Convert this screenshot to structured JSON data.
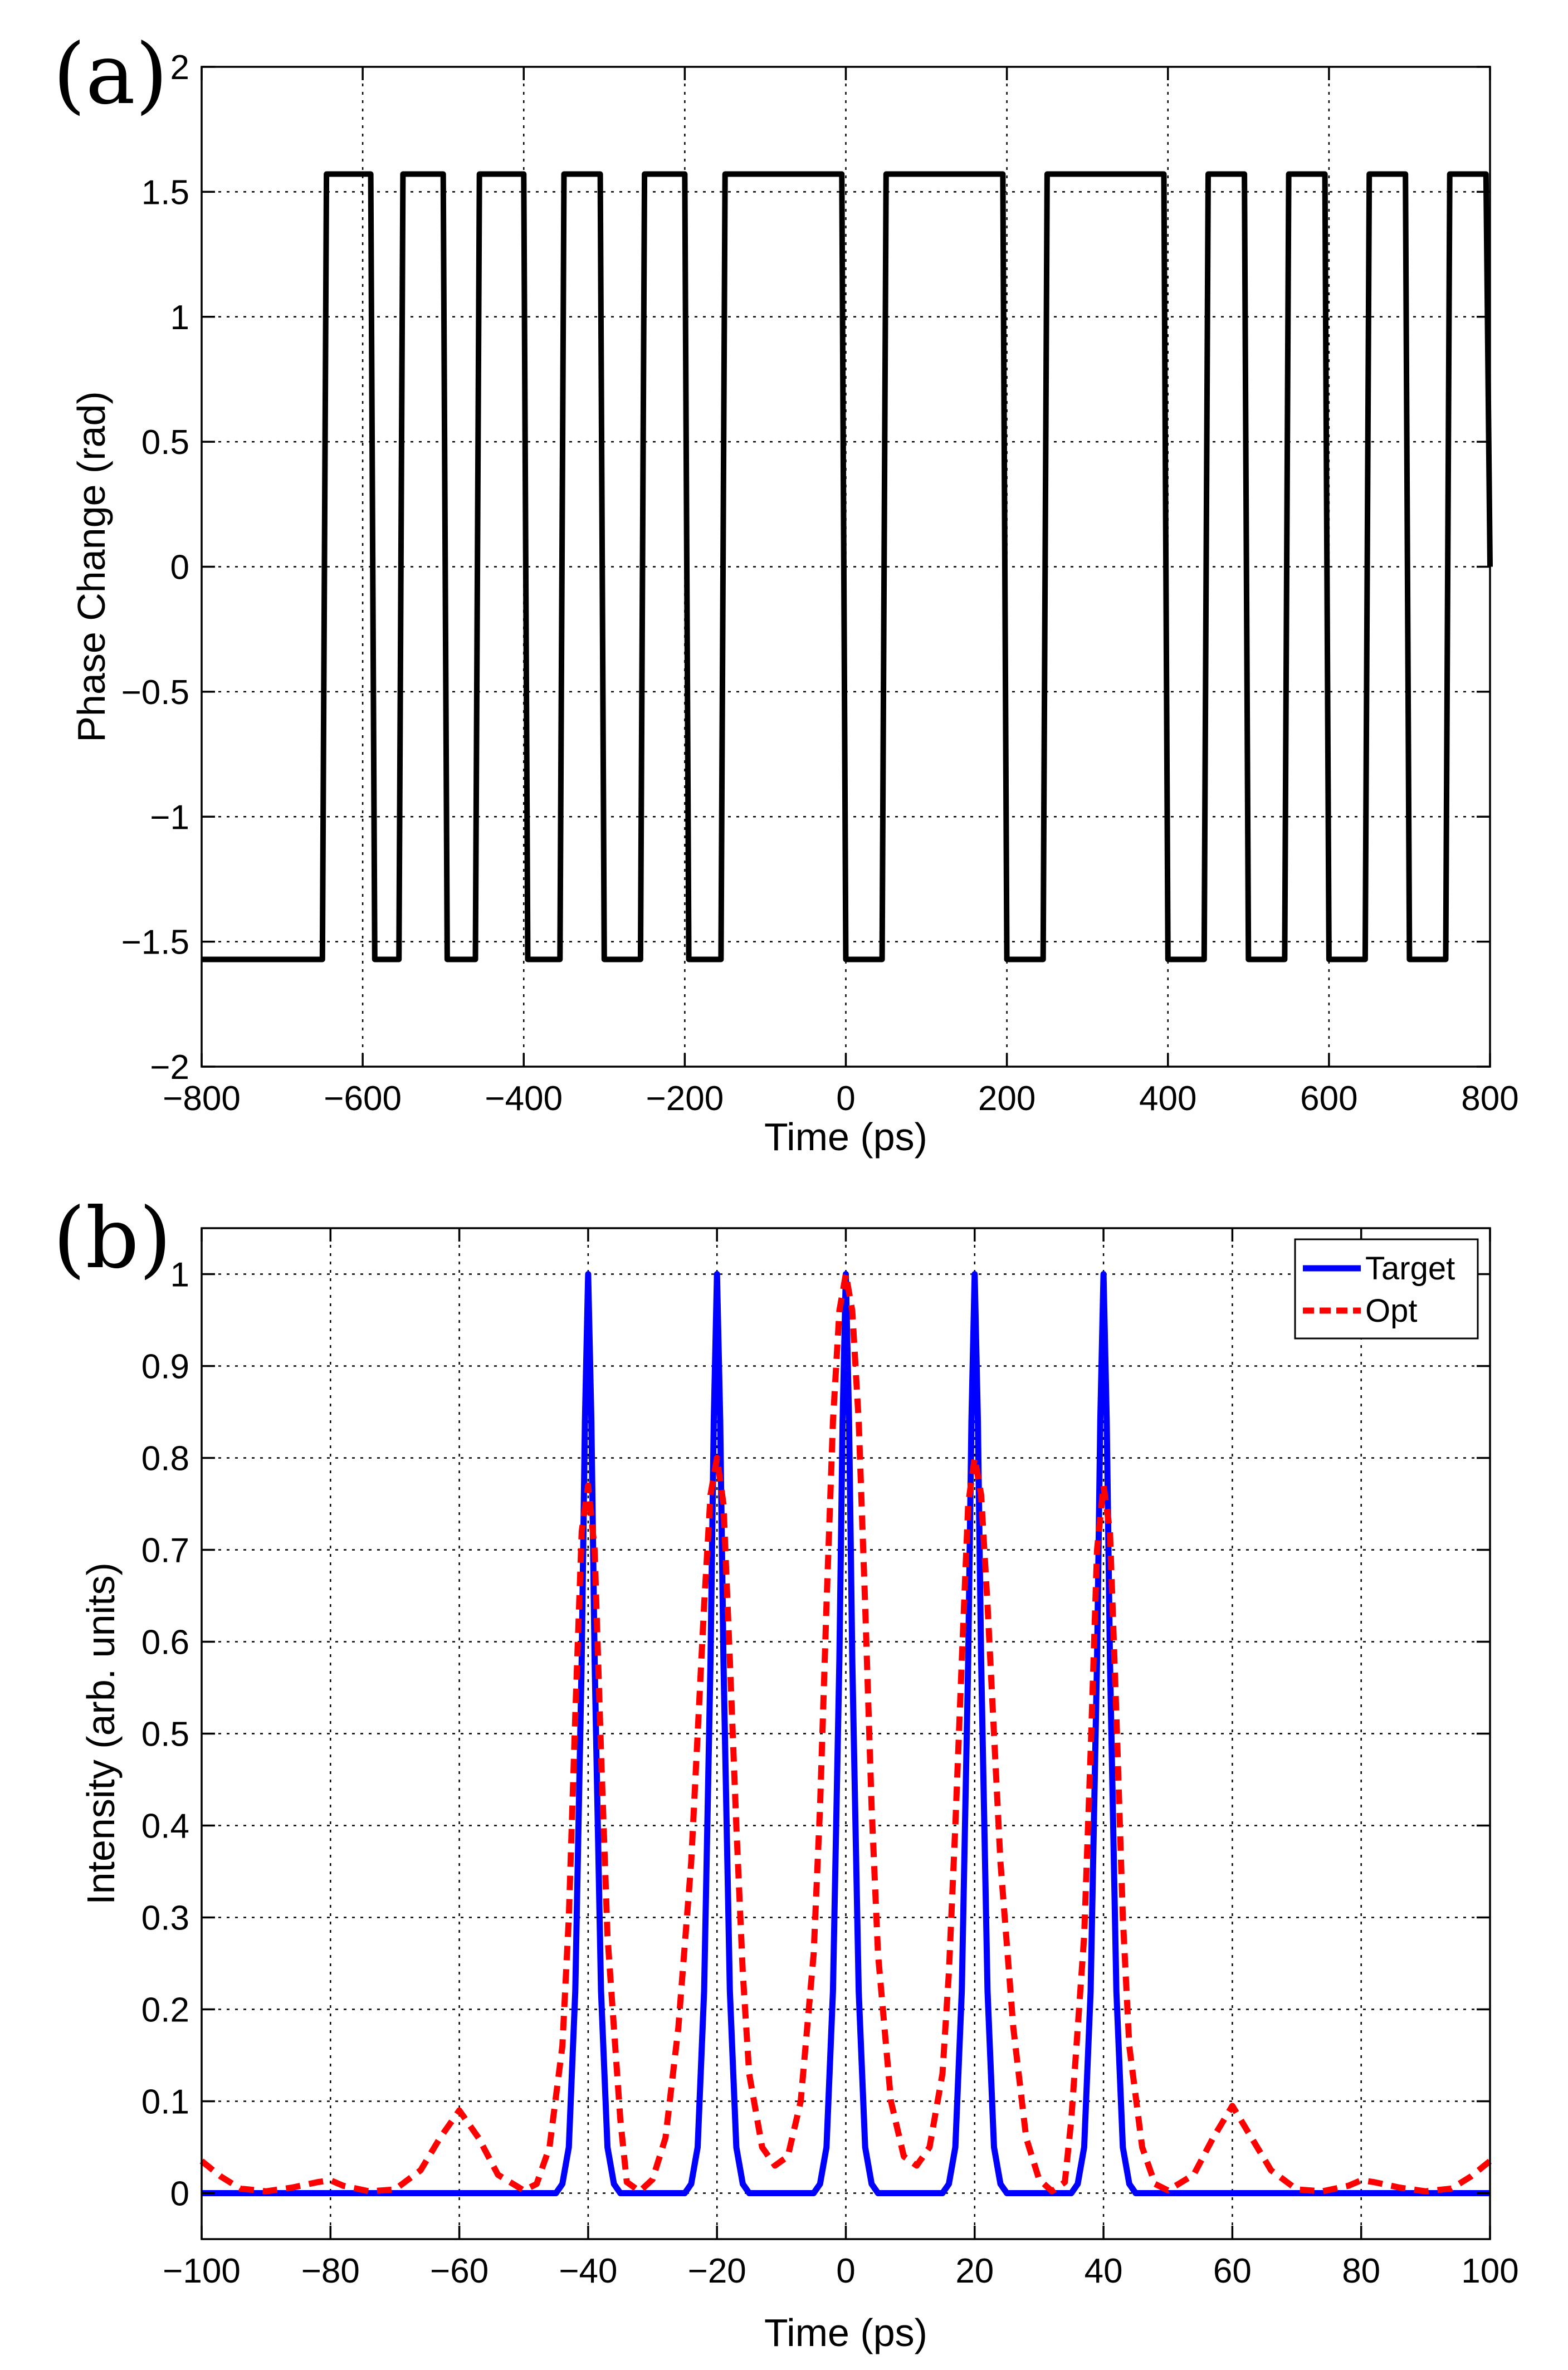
{
  "chart_data": [
    {
      "type": "line",
      "panel_label": "(a)",
      "title": "",
      "xlabel": "Time (ps)",
      "ylabel": "Phase Change (rad)",
      "xlim": [
        -800,
        800
      ],
      "ylim": [
        -2,
        2
      ],
      "grid": true,
      "xticks": [
        -800,
        -600,
        -400,
        -200,
        0,
        200,
        400,
        600,
        800
      ],
      "xtick_labels": [
        "−800",
        "−600",
        "−400",
        "−200",
        "0",
        "200",
        "400",
        "600",
        "800"
      ],
      "yticks": [
        2,
        1.5,
        1,
        0.5,
        0,
        -0.5,
        -1,
        -1.5,
        -2
      ],
      "ytick_labels": [
        "2",
        "1.5",
        "1",
        "0.5",
        "0",
        "−0.5",
        "−1",
        "−1.5",
        "−2"
      ],
      "series": [
        {
          "name": "Phase",
          "color": "#000000",
          "style": "solid",
          "x": [
            -800,
            -650,
            -645,
            -590,
            -585,
            -555,
            -550,
            -500,
            -495,
            -460,
            -455,
            -400,
            -395,
            -355,
            -350,
            -305,
            -300,
            -255,
            -250,
            -200,
            -195,
            -155,
            -150,
            -5,
            0,
            45,
            50,
            195,
            200,
            245,
            250,
            395,
            400,
            445,
            450,
            495,
            500,
            545,
            550,
            595,
            600,
            645,
            650,
            695,
            700,
            745,
            750,
            795,
            800
          ],
          "y": [
            -1.571,
            -1.571,
            1.571,
            1.571,
            -1.571,
            -1.571,
            1.571,
            1.571,
            -1.571,
            -1.571,
            1.571,
            1.571,
            -1.571,
            -1.571,
            1.571,
            1.571,
            -1.571,
            -1.571,
            1.571,
            1.571,
            -1.571,
            -1.571,
            1.571,
            1.571,
            -1.571,
            -1.571,
            1.571,
            1.571,
            -1.571,
            -1.571,
            1.571,
            1.571,
            -1.571,
            -1.571,
            1.571,
            1.571,
            -1.571,
            -1.571,
            1.571,
            1.571,
            -1.571,
            -1.571,
            1.571,
            1.571,
            -1.571,
            -1.571,
            1.571,
            1.571,
            0
          ]
        }
      ]
    },
    {
      "type": "line",
      "panel_label": "(b)",
      "title": "",
      "xlabel": "Time (ps)",
      "ylabel": "Intensity (arb. units)",
      "xlim": [
        -100,
        100
      ],
      "ylim": [
        -0.05,
        1.05
      ],
      "grid": true,
      "legend_position": "top-right",
      "xticks": [
        -100,
        -80,
        -60,
        -40,
        -20,
        0,
        20,
        40,
        60,
        80,
        100
      ],
      "xtick_labels": [
        "−100",
        "−80",
        "−60",
        "−40",
        "−20",
        "0",
        "20",
        "40",
        "60",
        "80",
        "100"
      ],
      "yticks": [
        1,
        0.9,
        0.8,
        0.7,
        0.6,
        0.5,
        0.4,
        0.3,
        0.2,
        0.1,
        0
      ],
      "ytick_labels": [
        "1",
        "0.9",
        "0.8",
        "0.7",
        "0.6",
        "0.5",
        "0.4",
        "0.3",
        "0.2",
        "0.1",
        "0"
      ],
      "series": [
        {
          "name": "Target",
          "color": "#0000ff",
          "style": "solid",
          "x": [
            -100,
            -50,
            -45,
            -44,
            -43,
            -42,
            -41,
            -40.5,
            -40,
            -39.5,
            -39,
            -38,
            -37,
            -36,
            -35,
            -30,
            -25,
            -24,
            -23,
            -22,
            -21,
            -20.5,
            -20,
            -19.5,
            -19,
            -18,
            -17,
            -16,
            -15,
            -5,
            -4,
            -3,
            -2,
            -1,
            -0.5,
            0,
            0.5,
            1,
            2,
            3,
            4,
            5,
            15,
            16,
            17,
            18,
            19,
            19.5,
            20,
            20.5,
            21,
            22,
            23,
            24,
            25,
            35,
            36,
            37,
            38,
            39,
            39.5,
            40,
            40.5,
            41,
            42,
            43,
            44,
            45,
            50,
            100
          ],
          "y": [
            0,
            0,
            0,
            0.01,
            0.05,
            0.22,
            0.58,
            0.84,
            1,
            0.84,
            0.58,
            0.22,
            0.05,
            0.01,
            0,
            0,
            0,
            0.01,
            0.05,
            0.22,
            0.58,
            0.84,
            1,
            0.84,
            0.58,
            0.22,
            0.05,
            0.01,
            0,
            0,
            0.01,
            0.05,
            0.22,
            0.58,
            0.84,
            1,
            0.84,
            0.58,
            0.22,
            0.05,
            0.01,
            0,
            0,
            0.01,
            0.05,
            0.22,
            0.58,
            0.84,
            1,
            0.84,
            0.58,
            0.22,
            0.05,
            0.01,
            0,
            0,
            0.01,
            0.05,
            0.22,
            0.58,
            0.84,
            1,
            0.84,
            0.58,
            0.22,
            0.05,
            0.01,
            0,
            0,
            0
          ]
        },
        {
          "name": "Opt",
          "color": "#ff0000",
          "style": "dashed",
          "x": [
            -100,
            -97,
            -94,
            -90,
            -86,
            -82,
            -80,
            -78,
            -74,
            -70,
            -66,
            -63,
            -60,
            -57,
            -54,
            -50,
            -48,
            -46,
            -44,
            -43,
            -42,
            -41,
            -40,
            -39,
            -38,
            -37,
            -35,
            -34,
            -32,
            -30,
            -28,
            -26,
            -24,
            -23,
            -22,
            -21,
            -20,
            -19,
            -18,
            -17,
            -16,
            -15,
            -13,
            -11,
            -9,
            -7,
            -5,
            -4,
            -3,
            -2,
            -1,
            0,
            1,
            2,
            3,
            4,
            5,
            7,
            9,
            11,
            13,
            15,
            16,
            17,
            18,
            19,
            20,
            21,
            22,
            23,
            24,
            26,
            28,
            30,
            32,
            34,
            35,
            37,
            38,
            39,
            40,
            41,
            42,
            43,
            44,
            46,
            48,
            50,
            54,
            57,
            60,
            63,
            66,
            70,
            74,
            78,
            80,
            82,
            86,
            90,
            94,
            97,
            100
          ],
          "y": [
            0.035,
            0.018,
            0.005,
            0.002,
            0.006,
            0.012,
            0.014,
            0.008,
            0.002,
            0.004,
            0.025,
            0.06,
            0.09,
            0.06,
            0.02,
            0.003,
            0.01,
            0.05,
            0.16,
            0.3,
            0.52,
            0.72,
            0.77,
            0.7,
            0.48,
            0.28,
            0.08,
            0.012,
            0.002,
            0.015,
            0.06,
            0.18,
            0.36,
            0.5,
            0.64,
            0.76,
            0.8,
            0.75,
            0.58,
            0.4,
            0.24,
            0.13,
            0.05,
            0.03,
            0.04,
            0.1,
            0.26,
            0.42,
            0.64,
            0.84,
            0.96,
            1,
            0.96,
            0.84,
            0.64,
            0.42,
            0.26,
            0.1,
            0.04,
            0.03,
            0.05,
            0.13,
            0.24,
            0.4,
            0.58,
            0.75,
            0.8,
            0.76,
            0.64,
            0.5,
            0.36,
            0.18,
            0.06,
            0.015,
            0.002,
            0.012,
            0.08,
            0.28,
            0.48,
            0.7,
            0.77,
            0.72,
            0.52,
            0.3,
            0.16,
            0.05,
            0.01,
            0.003,
            0.02,
            0.06,
            0.095,
            0.06,
            0.025,
            0.004,
            0.002,
            0.008,
            0.014,
            0.012,
            0.006,
            0.002,
            0.005,
            0.018,
            0.035
          ]
        }
      ]
    }
  ]
}
